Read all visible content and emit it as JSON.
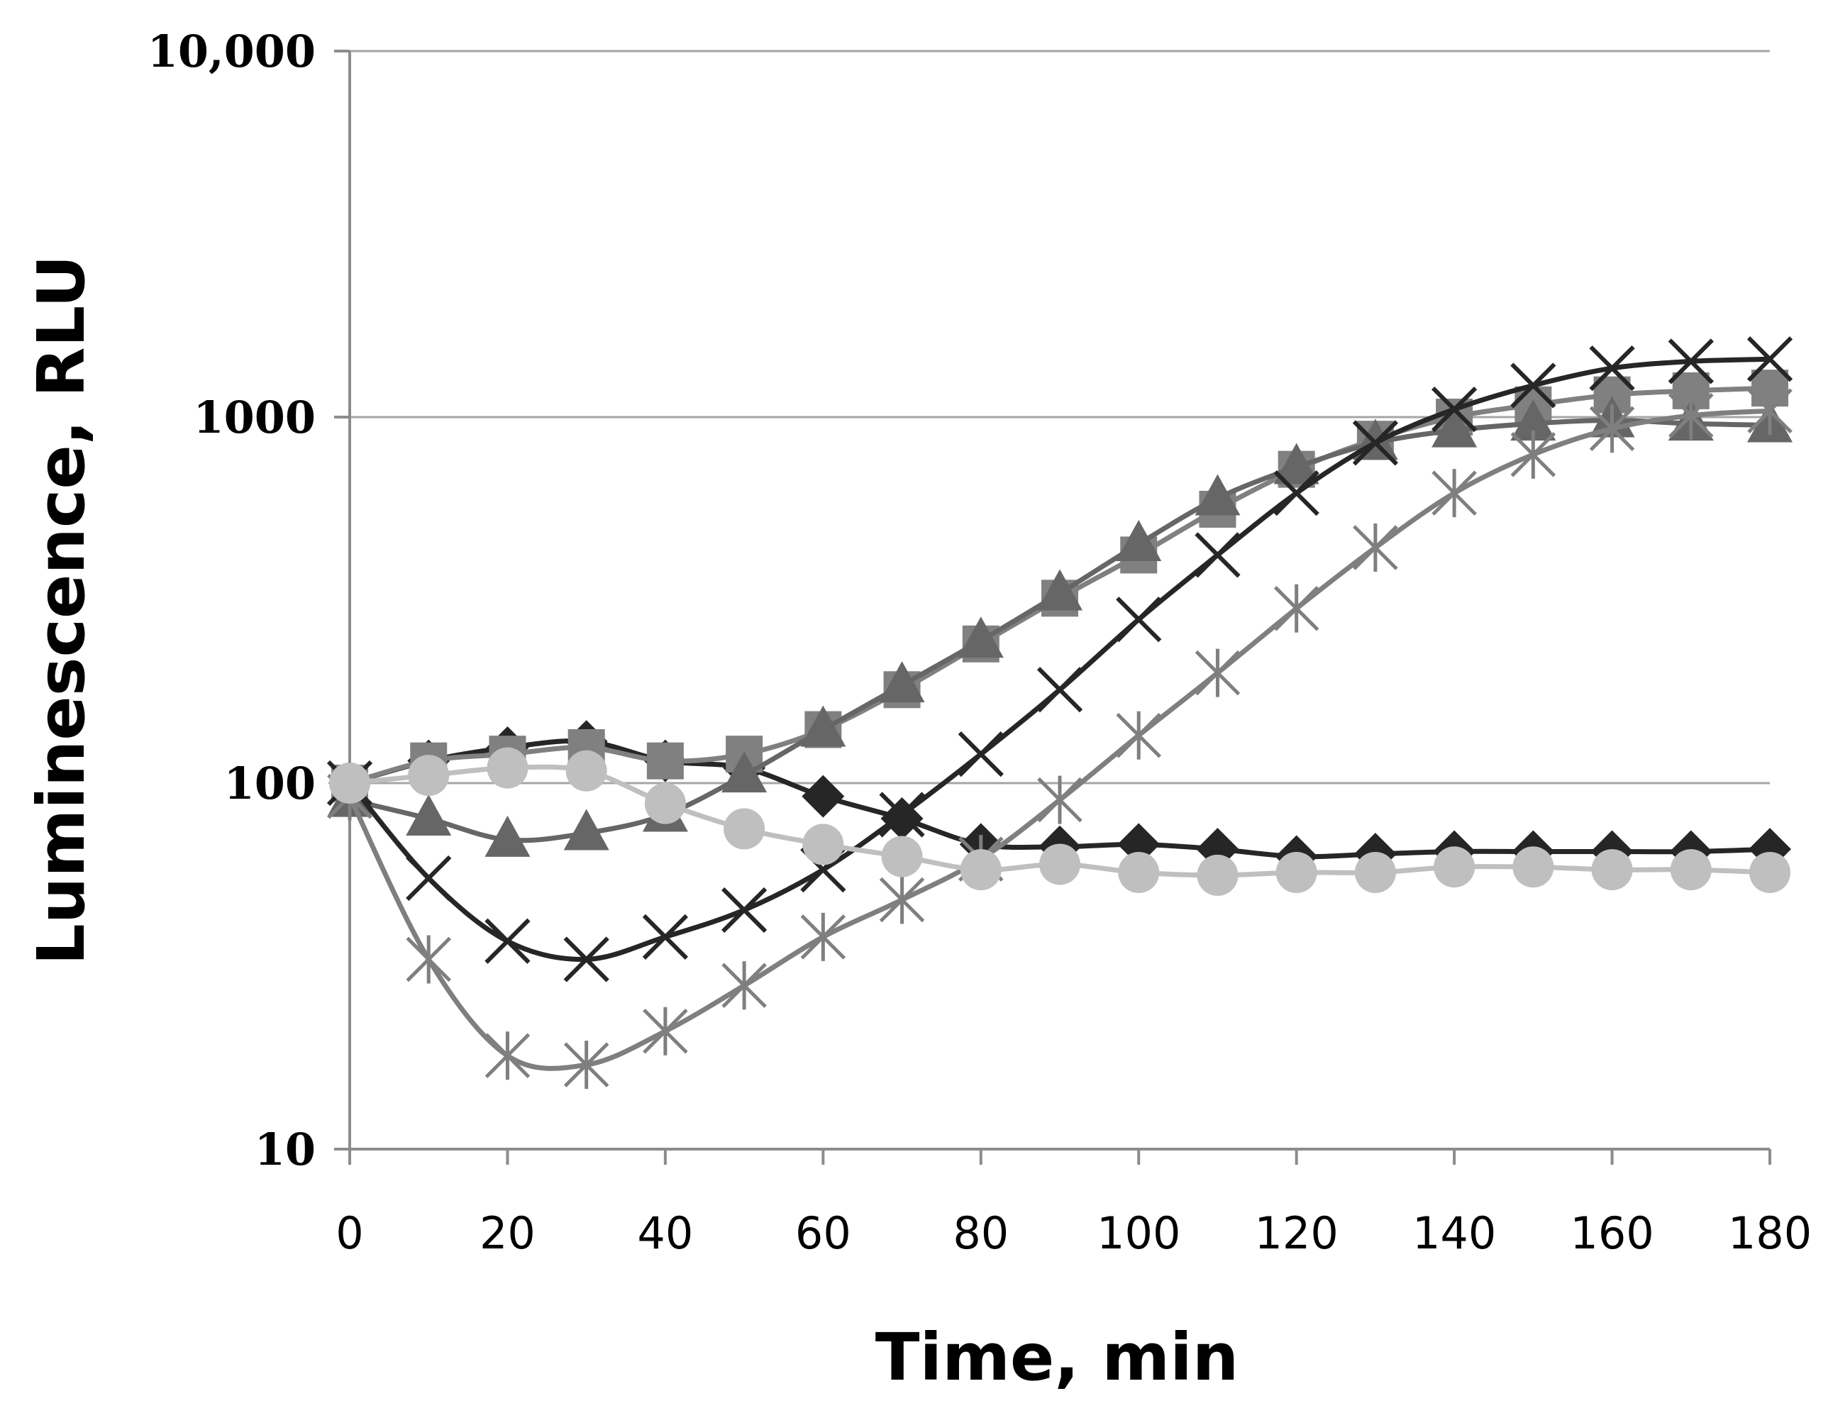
{
  "chart_data": {
    "type": "line",
    "title": "",
    "xlabel": "Time, min",
    "ylabel": "Luminescence, RLU",
    "yscale": "log",
    "xlim": [
      0,
      180
    ],
    "ylim": [
      10,
      10000
    ],
    "xticks": [
      0,
      20,
      40,
      60,
      80,
      100,
      120,
      140,
      160,
      180
    ],
    "xtick_labels": [
      "0",
      "20",
      "40",
      "60",
      "80",
      "100",
      "120",
      "140",
      "160",
      "180"
    ],
    "yticks": [
      10,
      100,
      1000,
      10000
    ],
    "ytick_labels": [
      "10",
      "100",
      "1000",
      "10,000"
    ],
    "grid": "horizontal",
    "legend": "none",
    "x": [
      0,
      10,
      20,
      30,
      40,
      50,
      60,
      70,
      80,
      90,
      100,
      110,
      120,
      130,
      140,
      150,
      160,
      170,
      180
    ],
    "series": [
      {
        "name": "diamond-series",
        "marker": "diamond",
        "color": "#262626",
        "values": [
          100,
          115,
          125,
          130,
          115,
          110,
          92,
          80,
          68,
          67,
          68,
          66,
          63,
          64,
          65,
          65,
          65,
          65,
          66
        ]
      },
      {
        "name": "square-series",
        "marker": "square",
        "color": "#808080",
        "values": [
          100,
          115,
          120,
          125,
          115,
          120,
          140,
          180,
          240,
          320,
          420,
          560,
          720,
          870,
          1000,
          1080,
          1150,
          1180,
          1200
        ]
      },
      {
        "name": "triangle-series",
        "marker": "triangle",
        "color": "#666666",
        "values": [
          90,
          80,
          70,
          73,
          82,
          105,
          140,
          185,
          245,
          330,
          450,
          600,
          730,
          850,
          920,
          960,
          980,
          960,
          950
        ]
      },
      {
        "name": "x-series",
        "marker": "x",
        "color": "#262626",
        "values": [
          100,
          55,
          37,
          33,
          38,
          45,
          58,
          82,
          120,
          180,
          280,
          420,
          620,
          850,
          1050,
          1220,
          1360,
          1420,
          1440
        ]
      },
      {
        "name": "star-series",
        "marker": "star",
        "color": "#7f7f7f",
        "values": [
          92,
          33,
          18,
          17,
          21,
          28,
          38,
          48,
          62,
          90,
          135,
          200,
          300,
          440,
          620,
          790,
          930,
          1010,
          1040
        ]
      },
      {
        "name": "circle-series",
        "marker": "circle",
        "color": "#bfbfbf",
        "values": [
          100,
          105,
          110,
          108,
          88,
          75,
          68,
          63,
          58,
          60,
          57,
          56,
          57,
          57,
          59,
          59,
          58,
          58,
          57
        ]
      }
    ]
  }
}
